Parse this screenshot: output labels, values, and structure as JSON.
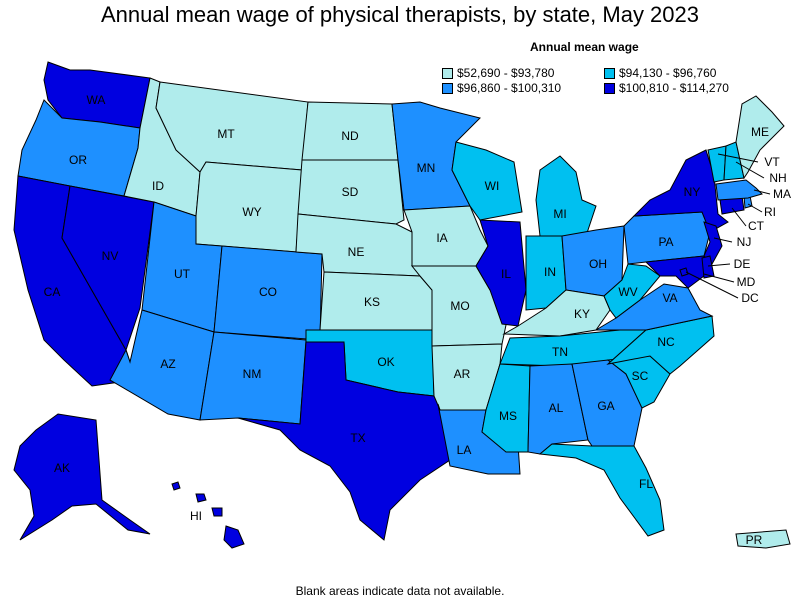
{
  "title": "Annual mean wage of physical therapists, by state, May 2023",
  "legend": {
    "title": "Annual mean wage",
    "items": [
      {
        "label": "$52,690 - $93,780",
        "color": "#b0ecec"
      },
      {
        "label": "$94,130 - $96,760",
        "color": "#00c0f0"
      },
      {
        "label": "$96,860 - $100,310",
        "color": "#1e90ff"
      },
      {
        "label": "$100,810 - $114,270",
        "color": "#0000e0"
      }
    ]
  },
  "footnote": "Blank areas indicate data not available.",
  "states": {
    "WA": {
      "label": "WA",
      "bin": 3
    },
    "OR": {
      "label": "OR",
      "bin": 2
    },
    "CA": {
      "label": "CA",
      "bin": 3
    },
    "NV": {
      "label": "NV",
      "bin": 3
    },
    "ID": {
      "label": "ID",
      "bin": 0
    },
    "MT": {
      "label": "MT",
      "bin": 0
    },
    "WY": {
      "label": "WY",
      "bin": 0
    },
    "UT": {
      "label": "UT",
      "bin": 2
    },
    "CO": {
      "label": "CO",
      "bin": 2
    },
    "AZ": {
      "label": "AZ",
      "bin": 2
    },
    "NM": {
      "label": "NM",
      "bin": 2
    },
    "ND": {
      "label": "ND",
      "bin": 0
    },
    "SD": {
      "label": "SD",
      "bin": 0
    },
    "NE": {
      "label": "NE",
      "bin": 0
    },
    "KS": {
      "label": "KS",
      "bin": 0
    },
    "OK": {
      "label": "OK",
      "bin": 1
    },
    "TX": {
      "label": "TX",
      "bin": 3
    },
    "MN": {
      "label": "MN",
      "bin": 2
    },
    "IA": {
      "label": "IA",
      "bin": 0
    },
    "MO": {
      "label": "MO",
      "bin": 0
    },
    "AR": {
      "label": "AR",
      "bin": 0
    },
    "LA": {
      "label": "LA",
      "bin": 2
    },
    "WI": {
      "label": "WI",
      "bin": 1
    },
    "IL": {
      "label": "IL",
      "bin": 3
    },
    "MI": {
      "label": "MI",
      "bin": 1
    },
    "IN": {
      "label": "IN",
      "bin": 1
    },
    "OH": {
      "label": "OH",
      "bin": 2
    },
    "KY": {
      "label": "KY",
      "bin": 0
    },
    "TN": {
      "label": "TN",
      "bin": 1
    },
    "MS": {
      "label": "MS",
      "bin": 1
    },
    "AL": {
      "label": "AL",
      "bin": 2
    },
    "GA": {
      "label": "GA",
      "bin": 2
    },
    "FL": {
      "label": "FL",
      "bin": 1
    },
    "SC": {
      "label": "SC",
      "bin": 1
    },
    "NC": {
      "label": "NC",
      "bin": 1
    },
    "VA": {
      "label": "VA",
      "bin": 2
    },
    "WV": {
      "label": "WV",
      "bin": 1
    },
    "PA": {
      "label": "PA",
      "bin": 2
    },
    "NY": {
      "label": "NY",
      "bin": 3
    },
    "NJ": {
      "label": "NJ",
      "bin": 3
    },
    "DE": {
      "label": "DE",
      "bin": 3
    },
    "MD": {
      "label": "MD",
      "bin": 3
    },
    "DC": {
      "label": "DC",
      "bin": 3
    },
    "CT": {
      "label": "CT",
      "bin": 3
    },
    "RI": {
      "label": "RI",
      "bin": 2
    },
    "MA": {
      "label": "MA",
      "bin": 2
    },
    "VT": {
      "label": "VT",
      "bin": 1
    },
    "NH": {
      "label": "NH",
      "bin": 1
    },
    "ME": {
      "label": "ME",
      "bin": 0
    },
    "AK": {
      "label": "AK",
      "bin": 3
    },
    "HI": {
      "label": "HI",
      "bin": 3
    },
    "PR": {
      "label": "PR",
      "bin": 0
    }
  }
}
